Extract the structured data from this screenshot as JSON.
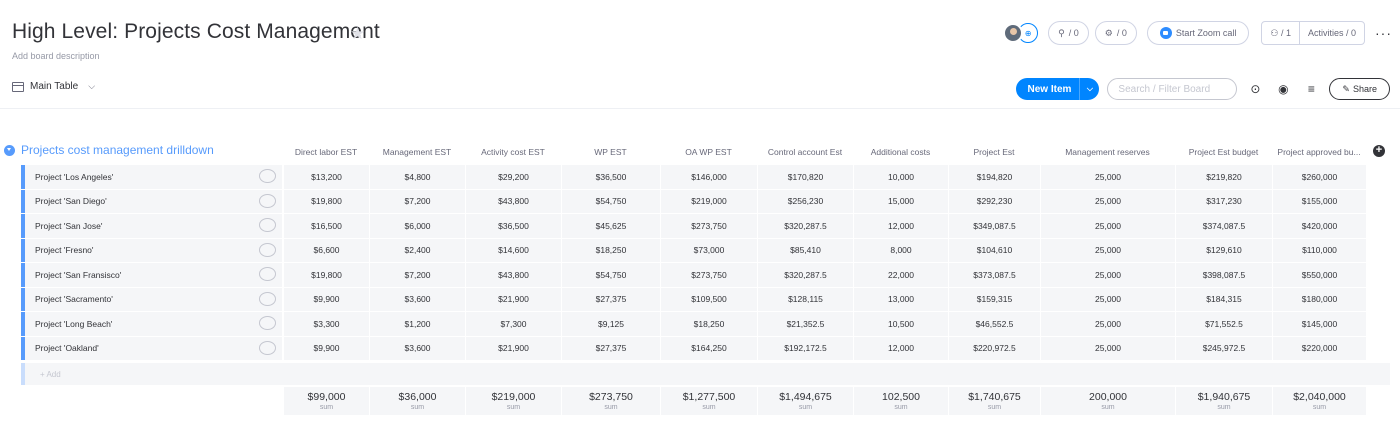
{
  "board": {
    "title": "High Level: Projects Cost Management",
    "description": "Add board description",
    "view_label": "Main Table"
  },
  "toolbar": {
    "updates_count": "/ 0",
    "integrations_count": "/ 0",
    "zoom_label": "Start Zoom call",
    "members_count": "/ 1",
    "activities_label": "Activities / 0",
    "new_item_label": "New Item",
    "search_placeholder": "Search / Filter Board",
    "share_label": "Share"
  },
  "group": {
    "title": "Projects cost management drilldown",
    "color": "#579bfc",
    "add_label": "+ Add"
  },
  "columns": [
    "Direct labor EST",
    "Management EST",
    "Activity cost EST",
    "WP EST",
    "OA WP EST",
    "Control account Est",
    "Additional costs",
    "Project Est",
    "Management reserves",
    "Project Est budget",
    "Project approved bu..."
  ],
  "rows": [
    {
      "name": "Project 'Los Angeles'",
      "cells": [
        "$13,200",
        "$4,800",
        "$29,200",
        "$36,500",
        "$146,000",
        "$170,820",
        "10,000",
        "$194,820",
        "25,000",
        "$219,820",
        "$260,000"
      ]
    },
    {
      "name": "Project 'San Diego'",
      "cells": [
        "$19,800",
        "$7,200",
        "$43,800",
        "$54,750",
        "$219,000",
        "$256,230",
        "15,000",
        "$292,230",
        "25,000",
        "$317,230",
        "$155,000"
      ]
    },
    {
      "name": "Project 'San Jose'",
      "cells": [
        "$16,500",
        "$6,000",
        "$36,500",
        "$45,625",
        "$273,750",
        "$320,287.5",
        "12,000",
        "$349,087.5",
        "25,000",
        "$374,087.5",
        "$420,000"
      ]
    },
    {
      "name": "Project 'Fresno'",
      "cells": [
        "$6,600",
        "$2,400",
        "$14,600",
        "$18,250",
        "$73,000",
        "$85,410",
        "8,000",
        "$104,610",
        "25,000",
        "$129,610",
        "$110,000"
      ]
    },
    {
      "name": "Project 'San Fransisco'",
      "cells": [
        "$19,800",
        "$7,200",
        "$43,800",
        "$54,750",
        "$273,750",
        "$320,287.5",
        "22,000",
        "$373,087.5",
        "25,000",
        "$398,087.5",
        "$550,000"
      ]
    },
    {
      "name": "Project 'Sacramento'",
      "cells": [
        "$9,900",
        "$3,600",
        "$21,900",
        "$27,375",
        "$109,500",
        "$128,115",
        "13,000",
        "$159,315",
        "25,000",
        "$184,315",
        "$180,000"
      ]
    },
    {
      "name": "Project 'Long Beach'",
      "cells": [
        "$3,300",
        "$1,200",
        "$7,300",
        "$9,125",
        "$18,250",
        "$21,352.5",
        "10,500",
        "$46,552.5",
        "25,000",
        "$71,552.5",
        "$145,000"
      ]
    },
    {
      "name": "Project 'Oakland'",
      "cells": [
        "$9,900",
        "$3,600",
        "$21,900",
        "$27,375",
        "$164,250",
        "$192,172.5",
        "12,000",
        "$220,972.5",
        "25,000",
        "$245,972.5",
        "$220,000"
      ]
    }
  ],
  "sums": [
    "$99,000",
    "$36,000",
    "$219,000",
    "$273,750",
    "$1,277,500",
    "$1,494,675",
    "102,500",
    "$1,740,675",
    "200,000",
    "$1,940,675",
    "$2,040,000"
  ],
  "sum_label": "sum"
}
